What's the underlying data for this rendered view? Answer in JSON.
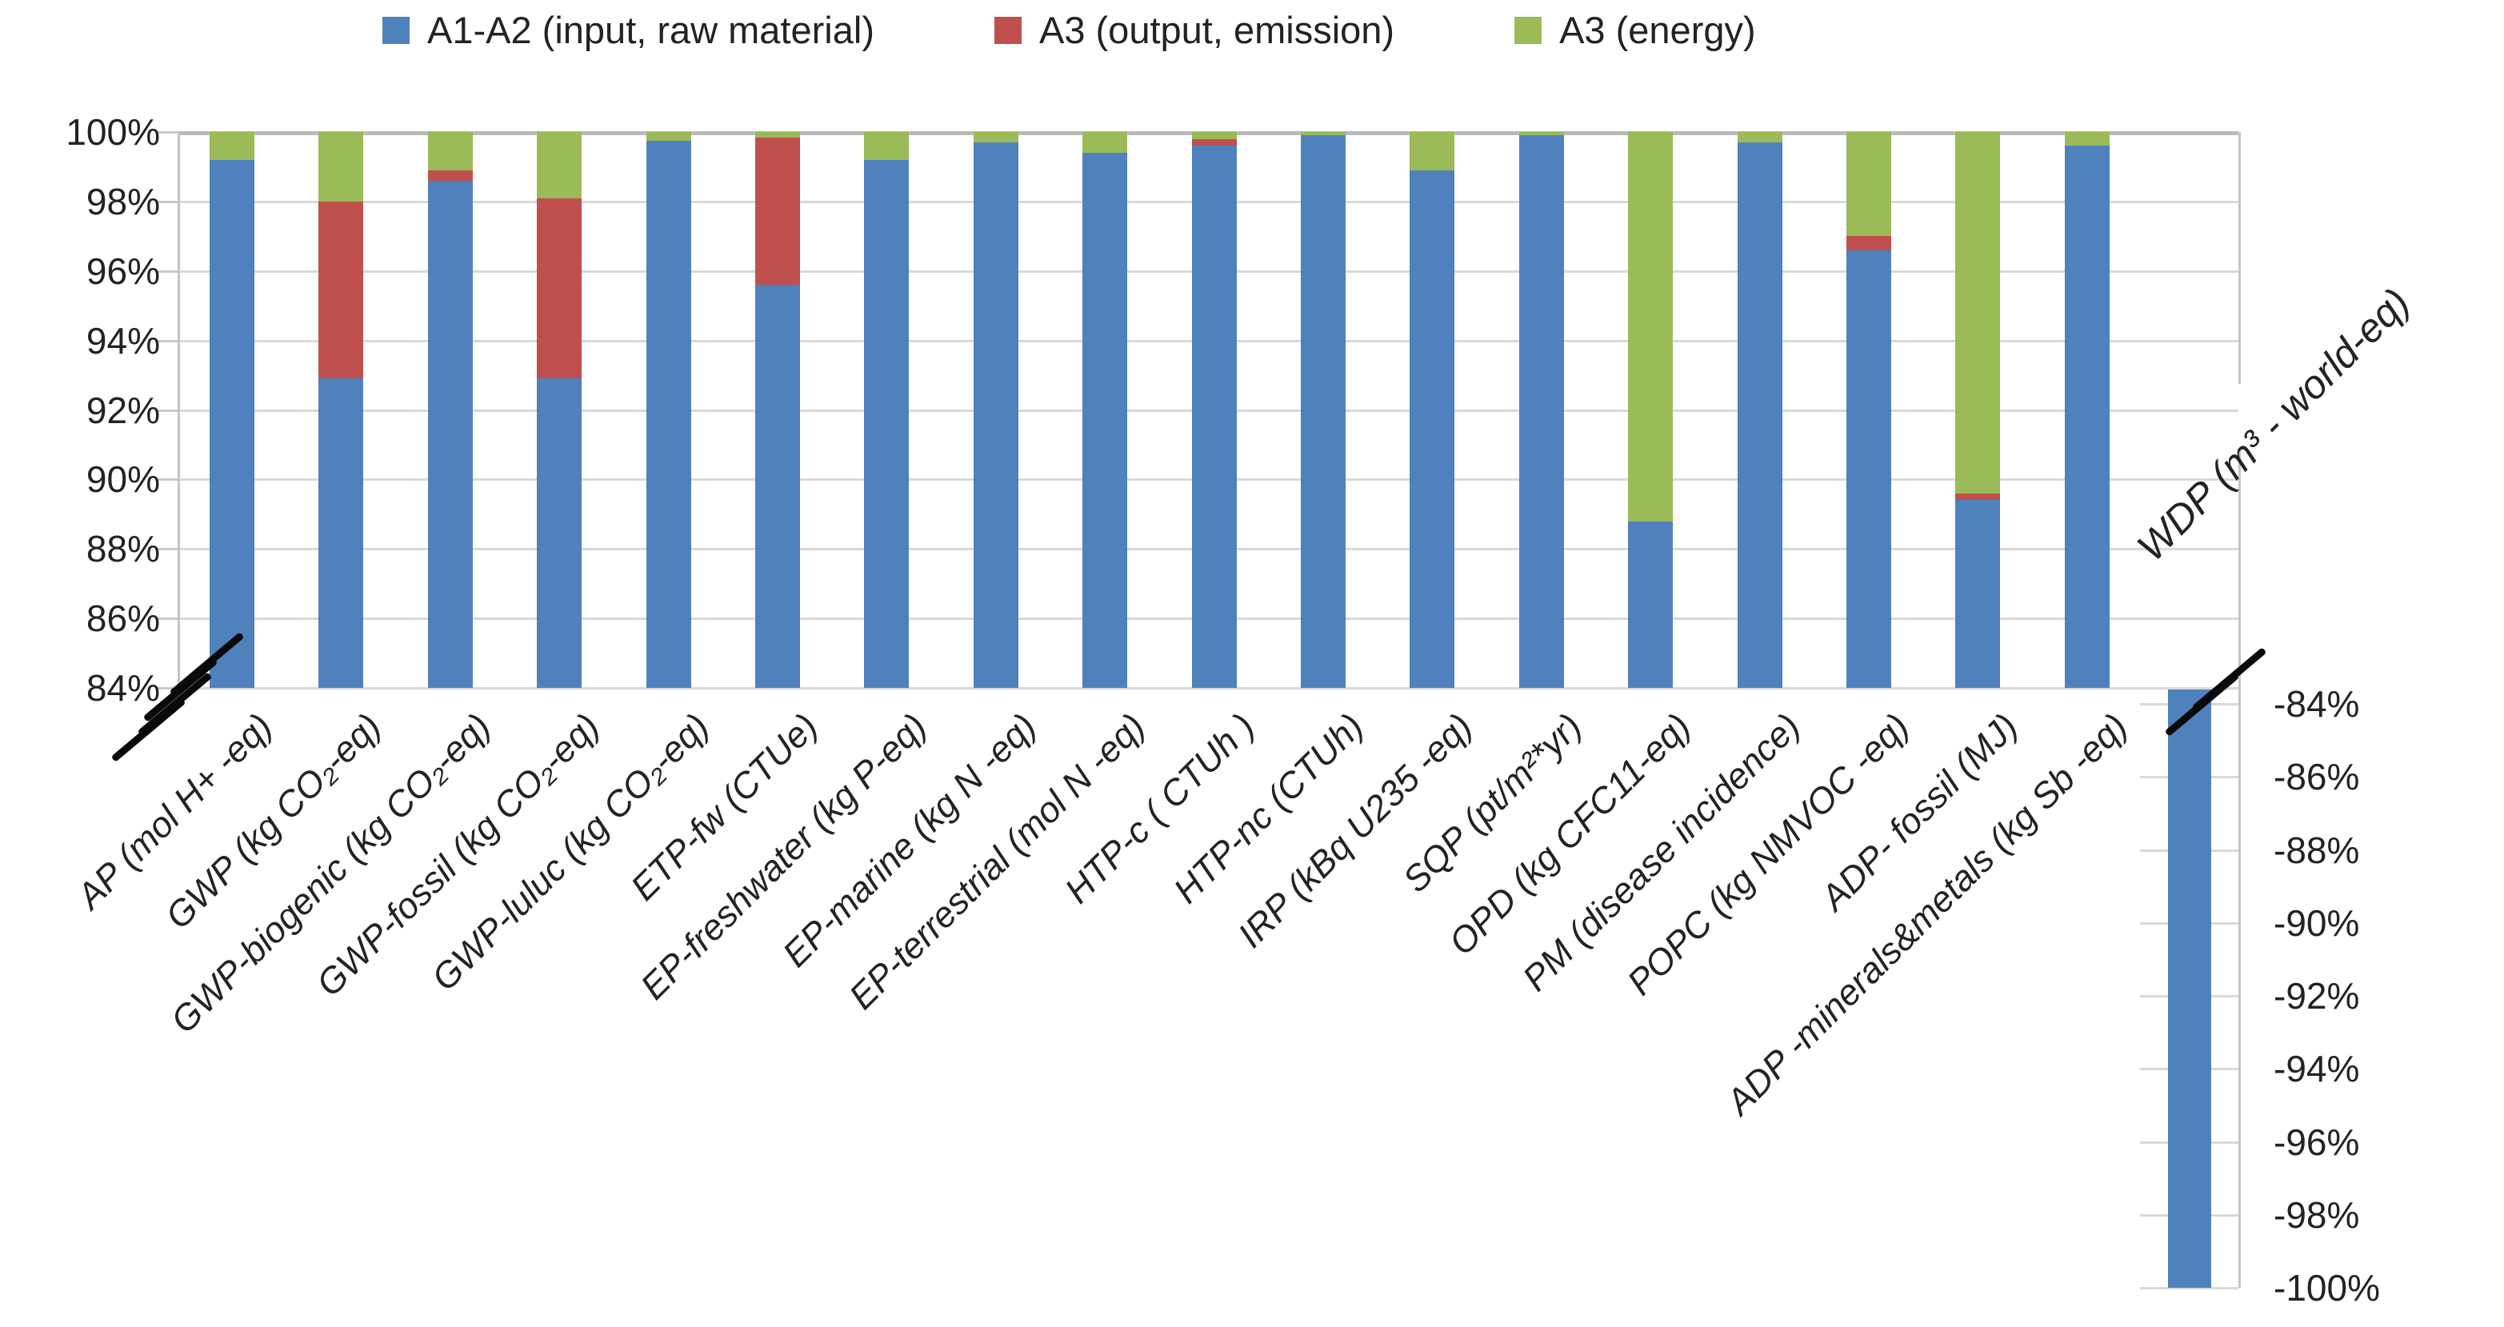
{
  "legend": {
    "items": [
      {
        "label": "A1-A2 (input, raw material)",
        "color": "#4f81bd"
      },
      {
        "label": "A3 (output, emission)",
        "color": "#c0504d"
      },
      {
        "label": "A3 (energy)",
        "color": "#9bbb59"
      }
    ]
  },
  "chart_data": {
    "type": "bar",
    "subtype": "stacked-100pct-with-broken-axis",
    "title": "",
    "xlabel": "",
    "ylabel": "",
    "grid": true,
    "legend_position": "top",
    "categories": [
      "AP (mol H+ -eq)",
      "GWP (kg CO₂-eq)",
      "GWP-biogenic (kg CO₂-eq)",
      "GWP-fossil (kg CO₂-eq)",
      "GWP-luluc (kg CO₂-eq)",
      "ETP-fw (CTUe)",
      "EP-freshwater (kg P-eq)",
      "EP-marine (kg N -eq)",
      "EP-terrestrial (mol N -eq)",
      "HTP-c ( CTUh )",
      "HTP-nc (CTUh)",
      "IRP (kBq U235 -eq)",
      "SQP (pt/m²*yr)",
      "OPD (kg CFC11-eq)",
      "PM (disease incidence)",
      "POPC (kg NMVOC -eq)",
      "ADP- fossil (MJ)",
      "ADP -minerals&metals (kg Sb -eq)"
    ],
    "series": [
      {
        "name": "A1-A2 (input, raw material)",
        "color": "#4f81bd",
        "values": [
          99.2,
          92.9,
          98.6,
          92.9,
          99.75,
          95.6,
          99.2,
          99.7,
          99.4,
          99.6,
          99.9,
          98.9,
          99.9,
          88.8,
          99.7,
          96.6,
          89.4,
          99.6
        ]
      },
      {
        "name": "A3 (output, emission)",
        "color": "#c0504d",
        "values": [
          0,
          5.1,
          0.3,
          5.2,
          0,
          4.25,
          0,
          0,
          0,
          0.2,
          0,
          0,
          0,
          0,
          0,
          0.4,
          0.2,
          0
        ]
      },
      {
        "name": "A3 (energy)",
        "color": "#9bbb59",
        "values": [
          0.8,
          2.0,
          1.1,
          1.9,
          0.25,
          0.15,
          0.8,
          0.3,
          0.6,
          0.2,
          0.1,
          1.1,
          0.1,
          11.2,
          0.3,
          3.0,
          10.4,
          0.4
        ]
      }
    ],
    "primary_axis": {
      "min": 84,
      "max": 100,
      "step": 2,
      "broken_below": 84,
      "tick_labels": [
        "100%",
        "98%",
        "96%",
        "94%",
        "92%",
        "90%",
        "88%",
        "86%",
        "84%"
      ]
    },
    "secondary_axis": {
      "min": -100,
      "max": -84,
      "step": -2,
      "broken_above": -84,
      "tick_labels": [
        "-84%",
        "-86%",
        "-88%",
        "-90%",
        "-92%",
        "-94%",
        "-96%",
        "-98%",
        "-100%"
      ]
    },
    "secondary_category": "WDP (m³ - world-eq)",
    "secondary_series": [
      {
        "name": "A1-A2 (input, raw material)",
        "color": "#4f81bd",
        "value": -100
      }
    ]
  }
}
